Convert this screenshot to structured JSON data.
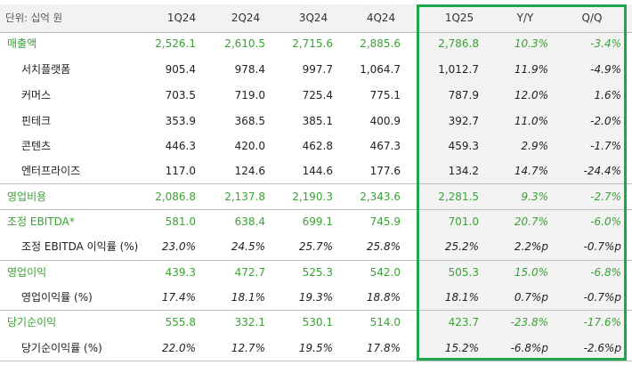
{
  "header": {
    "unit": "단위: 십억 원",
    "columns": [
      "1Q24",
      "2Q24",
      "3Q24",
      "4Q24",
      "1Q25",
      "Y/Y",
      "Q/Q"
    ]
  },
  "rows": [
    {
      "label": "매출액",
      "type": "group",
      "values": [
        "2,526.1",
        "2,610.5",
        "2,715.6",
        "2,885.6",
        "2,786.8",
        "10.3%",
        "-3.4%"
      ]
    },
    {
      "label": "서치플랫폼",
      "type": "sub",
      "values": [
        "905.4",
        "978.4",
        "997.7",
        "1,064.7",
        "1,012.7",
        "11.9%",
        "-4.9%"
      ]
    },
    {
      "label": "커머스",
      "type": "sub",
      "values": [
        "703.5",
        "719.0",
        "725.4",
        "775.1",
        "787.9",
        "12.0%",
        "1.6%"
      ]
    },
    {
      "label": "핀테크",
      "type": "sub",
      "values": [
        "353.9",
        "368.5",
        "385.1",
        "400.9",
        "392.7",
        "11.0%",
        "-2.0%"
      ]
    },
    {
      "label": "콘텐츠",
      "type": "sub",
      "values": [
        "446.3",
        "420.0",
        "462.8",
        "467.3",
        "459.3",
        "2.9%",
        "-1.7%"
      ]
    },
    {
      "label": "엔터프라이즈",
      "type": "sub",
      "values": [
        "117.0",
        "124.6",
        "144.6",
        "177.6",
        "134.2",
        "14.7%",
        "-24.4%"
      ]
    },
    {
      "label": "영업비용",
      "type": "group",
      "values": [
        "2,086.8",
        "2,137.8",
        "2,190.3",
        "2,343.6",
        "2,281.5",
        "9.3%",
        "-2.7%"
      ]
    },
    {
      "label": "조정 EBITDA*",
      "type": "group",
      "values": [
        "581.0",
        "638.4",
        "699.1",
        "745.9",
        "701.0",
        "20.7%",
        "-6.0%"
      ]
    },
    {
      "label": "조정 EBITDA 이익률 (%)",
      "type": "sub",
      "values": [
        "23.0%",
        "24.5%",
        "25.7%",
        "25.8%",
        "25.2%",
        "2.2%p",
        "-0.7%p"
      ]
    },
    {
      "label": "영업이익",
      "type": "group",
      "values": [
        "439.3",
        "472.7",
        "525.3",
        "542.0",
        "505.3",
        "15.0%",
        "-6.8%"
      ]
    },
    {
      "label": "영업이익률 (%)",
      "type": "sub",
      "values": [
        "17.4%",
        "18.1%",
        "19.3%",
        "18.8%",
        "18.1%",
        "0.7%p",
        "-0.7%p"
      ]
    },
    {
      "label": "당기순이익",
      "type": "group",
      "values": [
        "555.8",
        "332.1",
        "530.1",
        "514.0",
        "423.7",
        "-23.8%",
        "-17.6%"
      ]
    },
    {
      "label": "당기순이익률 (%)",
      "type": "sub",
      "values": [
        "22.0%",
        "12.7%",
        "19.5%",
        "17.8%",
        "15.2%",
        "-6.8%p",
        "-2.6%p"
      ]
    }
  ],
  "colors": {
    "accent": "#3aa135",
    "highlight_border": "#1ea64a",
    "header_bg": "#f2f2f2"
  }
}
